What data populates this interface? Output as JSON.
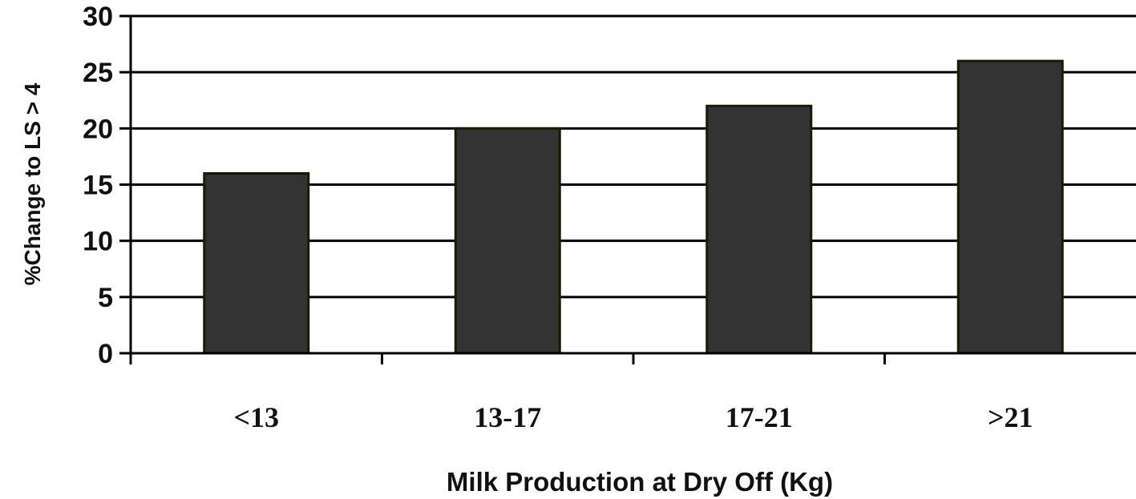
{
  "chart_data": {
    "type": "bar",
    "categories": [
      "<13",
      "13-17",
      "17-21",
      ">21"
    ],
    "values": [
      16,
      20,
      22,
      26
    ],
    "title": "",
    "xlabel": "Milk Production at Dry Off (Kg)",
    "ylabel": "%Change to LS > 4",
    "ylim": [
      0,
      30
    ],
    "yticks": [
      0,
      5,
      10,
      15,
      20,
      25,
      30
    ],
    "grid": true,
    "legend": "none",
    "colors": {
      "bar_fill": "#333333",
      "bar_edge": "#1a1a00",
      "grid": "#000000",
      "axis": "#000000"
    }
  }
}
